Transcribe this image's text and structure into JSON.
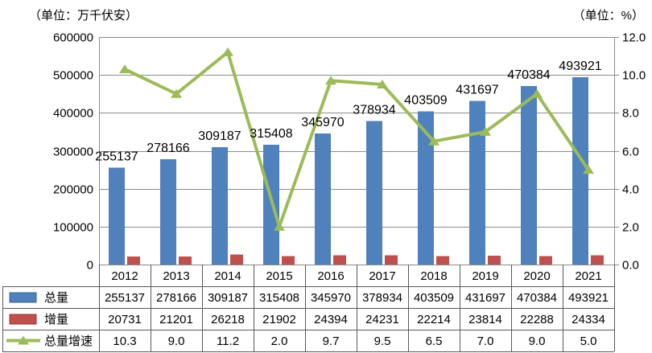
{
  "units": {
    "left": "（单位：万千伏安）",
    "right": "（单位：%）"
  },
  "chart_data": {
    "type": "combo-bar-line",
    "categories": [
      "2012",
      "2013",
      "2014",
      "2015",
      "2016",
      "2017",
      "2018",
      "2019",
      "2020",
      "2021"
    ],
    "series": [
      {
        "name": "总量",
        "type": "bar",
        "axis": "left",
        "color": "#4F81BD",
        "border_color": "#3A6493",
        "values": [
          255137,
          278166,
          309187,
          315408,
          345970,
          378934,
          403509,
          431697,
          470384,
          493921
        ],
        "data_labels": true
      },
      {
        "name": "增量",
        "type": "bar",
        "axis": "left",
        "color": "#C0504D",
        "border_color": "#953735",
        "values": [
          20731,
          21201,
          26218,
          21902,
          24394,
          24231,
          22214,
          23814,
          22288,
          24334
        ],
        "data_labels": false
      },
      {
        "name": "总量增速",
        "type": "line",
        "axis": "right",
        "color": "#9BBB59",
        "marker": "triangle",
        "values": [
          10.3,
          9.0,
          11.2,
          2.0,
          9.7,
          9.5,
          6.5,
          7.0,
          9.0,
          5.0
        ],
        "data_labels": false
      }
    ],
    "left_axis": {
      "min": 0,
      "max": 600000,
      "step": 100000,
      "tick_labels": [
        "600000",
        "500000",
        "400000",
        "300000",
        "200000",
        "100000",
        "0"
      ]
    },
    "right_axis": {
      "min": 0,
      "max": 12,
      "step": 2,
      "tick_labels": [
        "12.0",
        "10.0",
        "8.0",
        "6.0",
        "4.0",
        "2.0",
        "0.0"
      ]
    },
    "grid": "horizontal",
    "legend_position": "data-table-left",
    "data_table_shown": true
  },
  "colors": {
    "grid": "#8C8C8C",
    "plot_border": "#8C8C8C",
    "table_border": "#595959",
    "text": "#000000",
    "background": "#FFFFFF"
  }
}
